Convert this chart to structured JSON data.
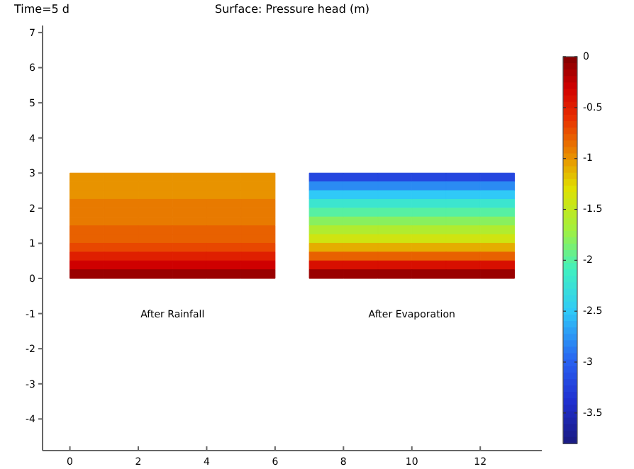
{
  "chart_data": {
    "type": "heatmap",
    "title": "Surface: Pressure head (m)",
    "subtitle": "Time=5 d",
    "x": [
      0.5,
      1.5,
      2.5,
      3.5,
      4.5,
      5.5,
      6.5,
      7.5,
      8.5,
      9.5,
      10.5,
      11.5,
      12.5
    ],
    "y": [
      2.875,
      2.625,
      2.375,
      2.125,
      1.875,
      1.625,
      1.375,
      1.125,
      0.875,
      0.625,
      0.375,
      0.125
    ],
    "cells": [
      [
        -1.0,
        -1.0,
        -1.0,
        -1.0,
        -1.0,
        -1.0,
        null,
        -3.2,
        -3.2,
        -3.2,
        -3.2,
        -3.2,
        -3.2
      ],
      [
        -1.0,
        -1.0,
        -1.0,
        -1.0,
        -1.0,
        -1.0,
        null,
        -2.8,
        -2.8,
        -2.8,
        -2.8,
        -2.8,
        -2.8
      ],
      [
        -1.0,
        -1.0,
        -1.0,
        -1.0,
        -1.0,
        -1.0,
        null,
        -2.5,
        -2.5,
        -2.5,
        -2.5,
        -2.5,
        -2.5
      ],
      [
        -0.9,
        -0.9,
        -0.9,
        -0.9,
        -0.9,
        -0.9,
        null,
        -2.2,
        -2.2,
        -2.2,
        -2.2,
        -2.2,
        -2.2
      ],
      [
        -0.9,
        -0.9,
        -0.9,
        -0.9,
        -0.9,
        -0.9,
        null,
        -2.0,
        -2.0,
        -2.0,
        -2.0,
        -2.0,
        -2.0
      ],
      [
        -0.9,
        -0.9,
        -0.9,
        -0.9,
        -0.9,
        -0.9,
        null,
        -1.8,
        -1.8,
        -1.8,
        -1.8,
        -1.8,
        -1.8
      ],
      [
        -0.8,
        -0.8,
        -0.8,
        -0.8,
        -0.8,
        -0.8,
        null,
        -1.6,
        -1.6,
        -1.6,
        -1.6,
        -1.6,
        -1.6
      ],
      [
        -0.8,
        -0.8,
        -0.8,
        -0.8,
        -0.8,
        -0.8,
        null,
        -1.4,
        -1.4,
        -1.4,
        -1.4,
        -1.4,
        -1.4
      ],
      [
        -0.7,
        -0.7,
        -0.7,
        -0.7,
        -0.7,
        -0.7,
        null,
        -1.1,
        -1.1,
        -1.1,
        -1.1,
        -1.1,
        -1.1
      ],
      [
        -0.5,
        -0.5,
        -0.5,
        -0.5,
        -0.5,
        -0.5,
        null,
        -0.8,
        -0.8,
        -0.8,
        -0.8,
        -0.8,
        -0.8
      ],
      [
        -0.3,
        -0.3,
        -0.3,
        -0.3,
        -0.3,
        -0.3,
        null,
        -0.4,
        -0.4,
        -0.4,
        -0.4,
        -0.4,
        -0.4
      ],
      [
        -0.1,
        -0.1,
        -0.1,
        -0.1,
        -0.1,
        -0.1,
        null,
        -0.1,
        -0.1,
        -0.1,
        -0.1,
        -0.1,
        -0.1
      ]
    ],
    "xlim": [
      -0.8,
      13.8
    ],
    "xticks": [
      0,
      2,
      4,
      6,
      8,
      10,
      12
    ],
    "ylim": [
      -4.9,
      7.2
    ],
    "yticks": [
      -4,
      -3,
      -2,
      -1,
      0,
      1,
      2,
      3,
      4,
      5,
      6,
      7
    ],
    "clim": [
      -3.8,
      0
    ],
    "cticks": [
      0,
      -0.5,
      -1,
      -1.5,
      -2,
      -2.5,
      -3,
      -3.5
    ],
    "annotations": [
      "After Rainfall",
      "After Evaporation"
    ]
  }
}
